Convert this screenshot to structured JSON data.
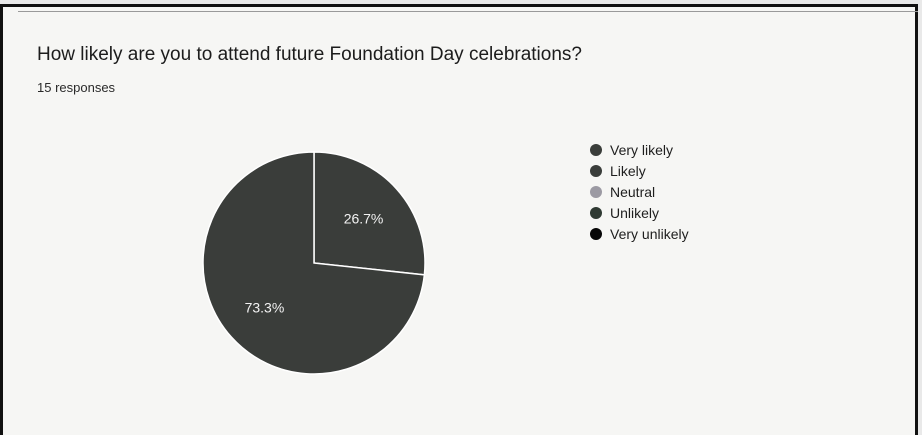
{
  "question": {
    "title": "How likely are you to attend future Foundation Day celebrations?",
    "responses": "15 responses"
  },
  "chart_data": {
    "type": "pie",
    "title": "How likely are you to attend future Foundation Day celebrations?",
    "subtitle": "15 responses",
    "categories": [
      "Very likely",
      "Likely",
      "Neutral",
      "Unlikely",
      "Very unlikely"
    ],
    "values": [
      26.7,
      73.3,
      0,
      0,
      0
    ],
    "slice_labels": [
      "26.7%",
      "73.3%",
      "",
      "",
      ""
    ],
    "colors": [
      "#3a3d3a",
      "#3a3d3a",
      "#9c9aa3",
      "#2f3a33",
      "#070707"
    ],
    "legend_position": "right"
  }
}
